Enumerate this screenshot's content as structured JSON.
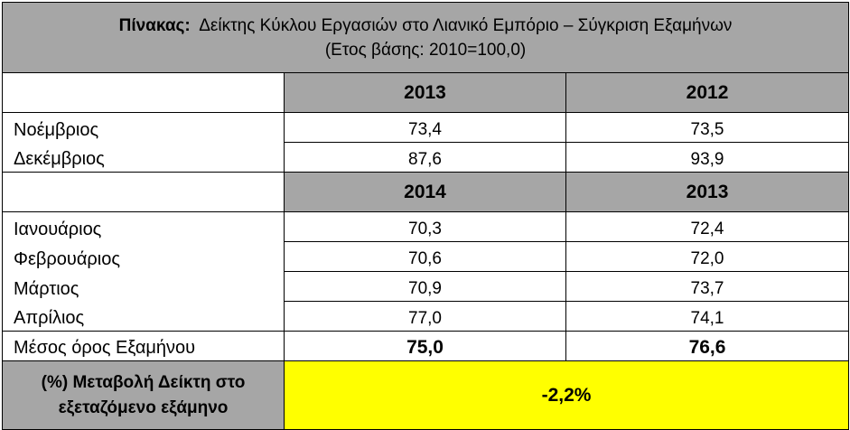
{
  "title": {
    "label": "Πίνακας:",
    "text": "Δείκτης Κύκλου Εργασιών στο Λιανικό Εμπόριο – Σύγκριση Εξαμήνων",
    "subtitle": "(Ετος βάσης: 2010=100,0)"
  },
  "section1": {
    "col_a": "2013",
    "col_b": "2012",
    "rows": [
      {
        "month": "Νοέμβριος",
        "a": "73,4",
        "b": "73,5"
      },
      {
        "month": "Δεκέμβριος",
        "a": "87,6",
        "b": "93,9"
      }
    ]
  },
  "section2": {
    "col_a": "2014",
    "col_b": "2013",
    "rows": [
      {
        "month": "Ιανουάριος",
        "a": "70,3",
        "b": "72,4"
      },
      {
        "month": "Φεβρουάριος",
        "a": "70,6",
        "b": "72,0"
      },
      {
        "month": "Μάρτιος",
        "a": "70,9",
        "b": "73,7"
      },
      {
        "month": "Απρίλιος",
        "a": "77,0",
        "b": "74,1"
      }
    ]
  },
  "average": {
    "label": "Μέσος όρος Εξαμήνου",
    "a": "75,0",
    "b": "76,6"
  },
  "change": {
    "label_line1": "(%) Μεταβολή Δείκτη στο",
    "label_line2": "εξεταζόμενο εξάμηνο",
    "value": "-2,2%"
  },
  "colors": {
    "header_bg": "#a6a6a6",
    "highlight": "#ffff00"
  }
}
